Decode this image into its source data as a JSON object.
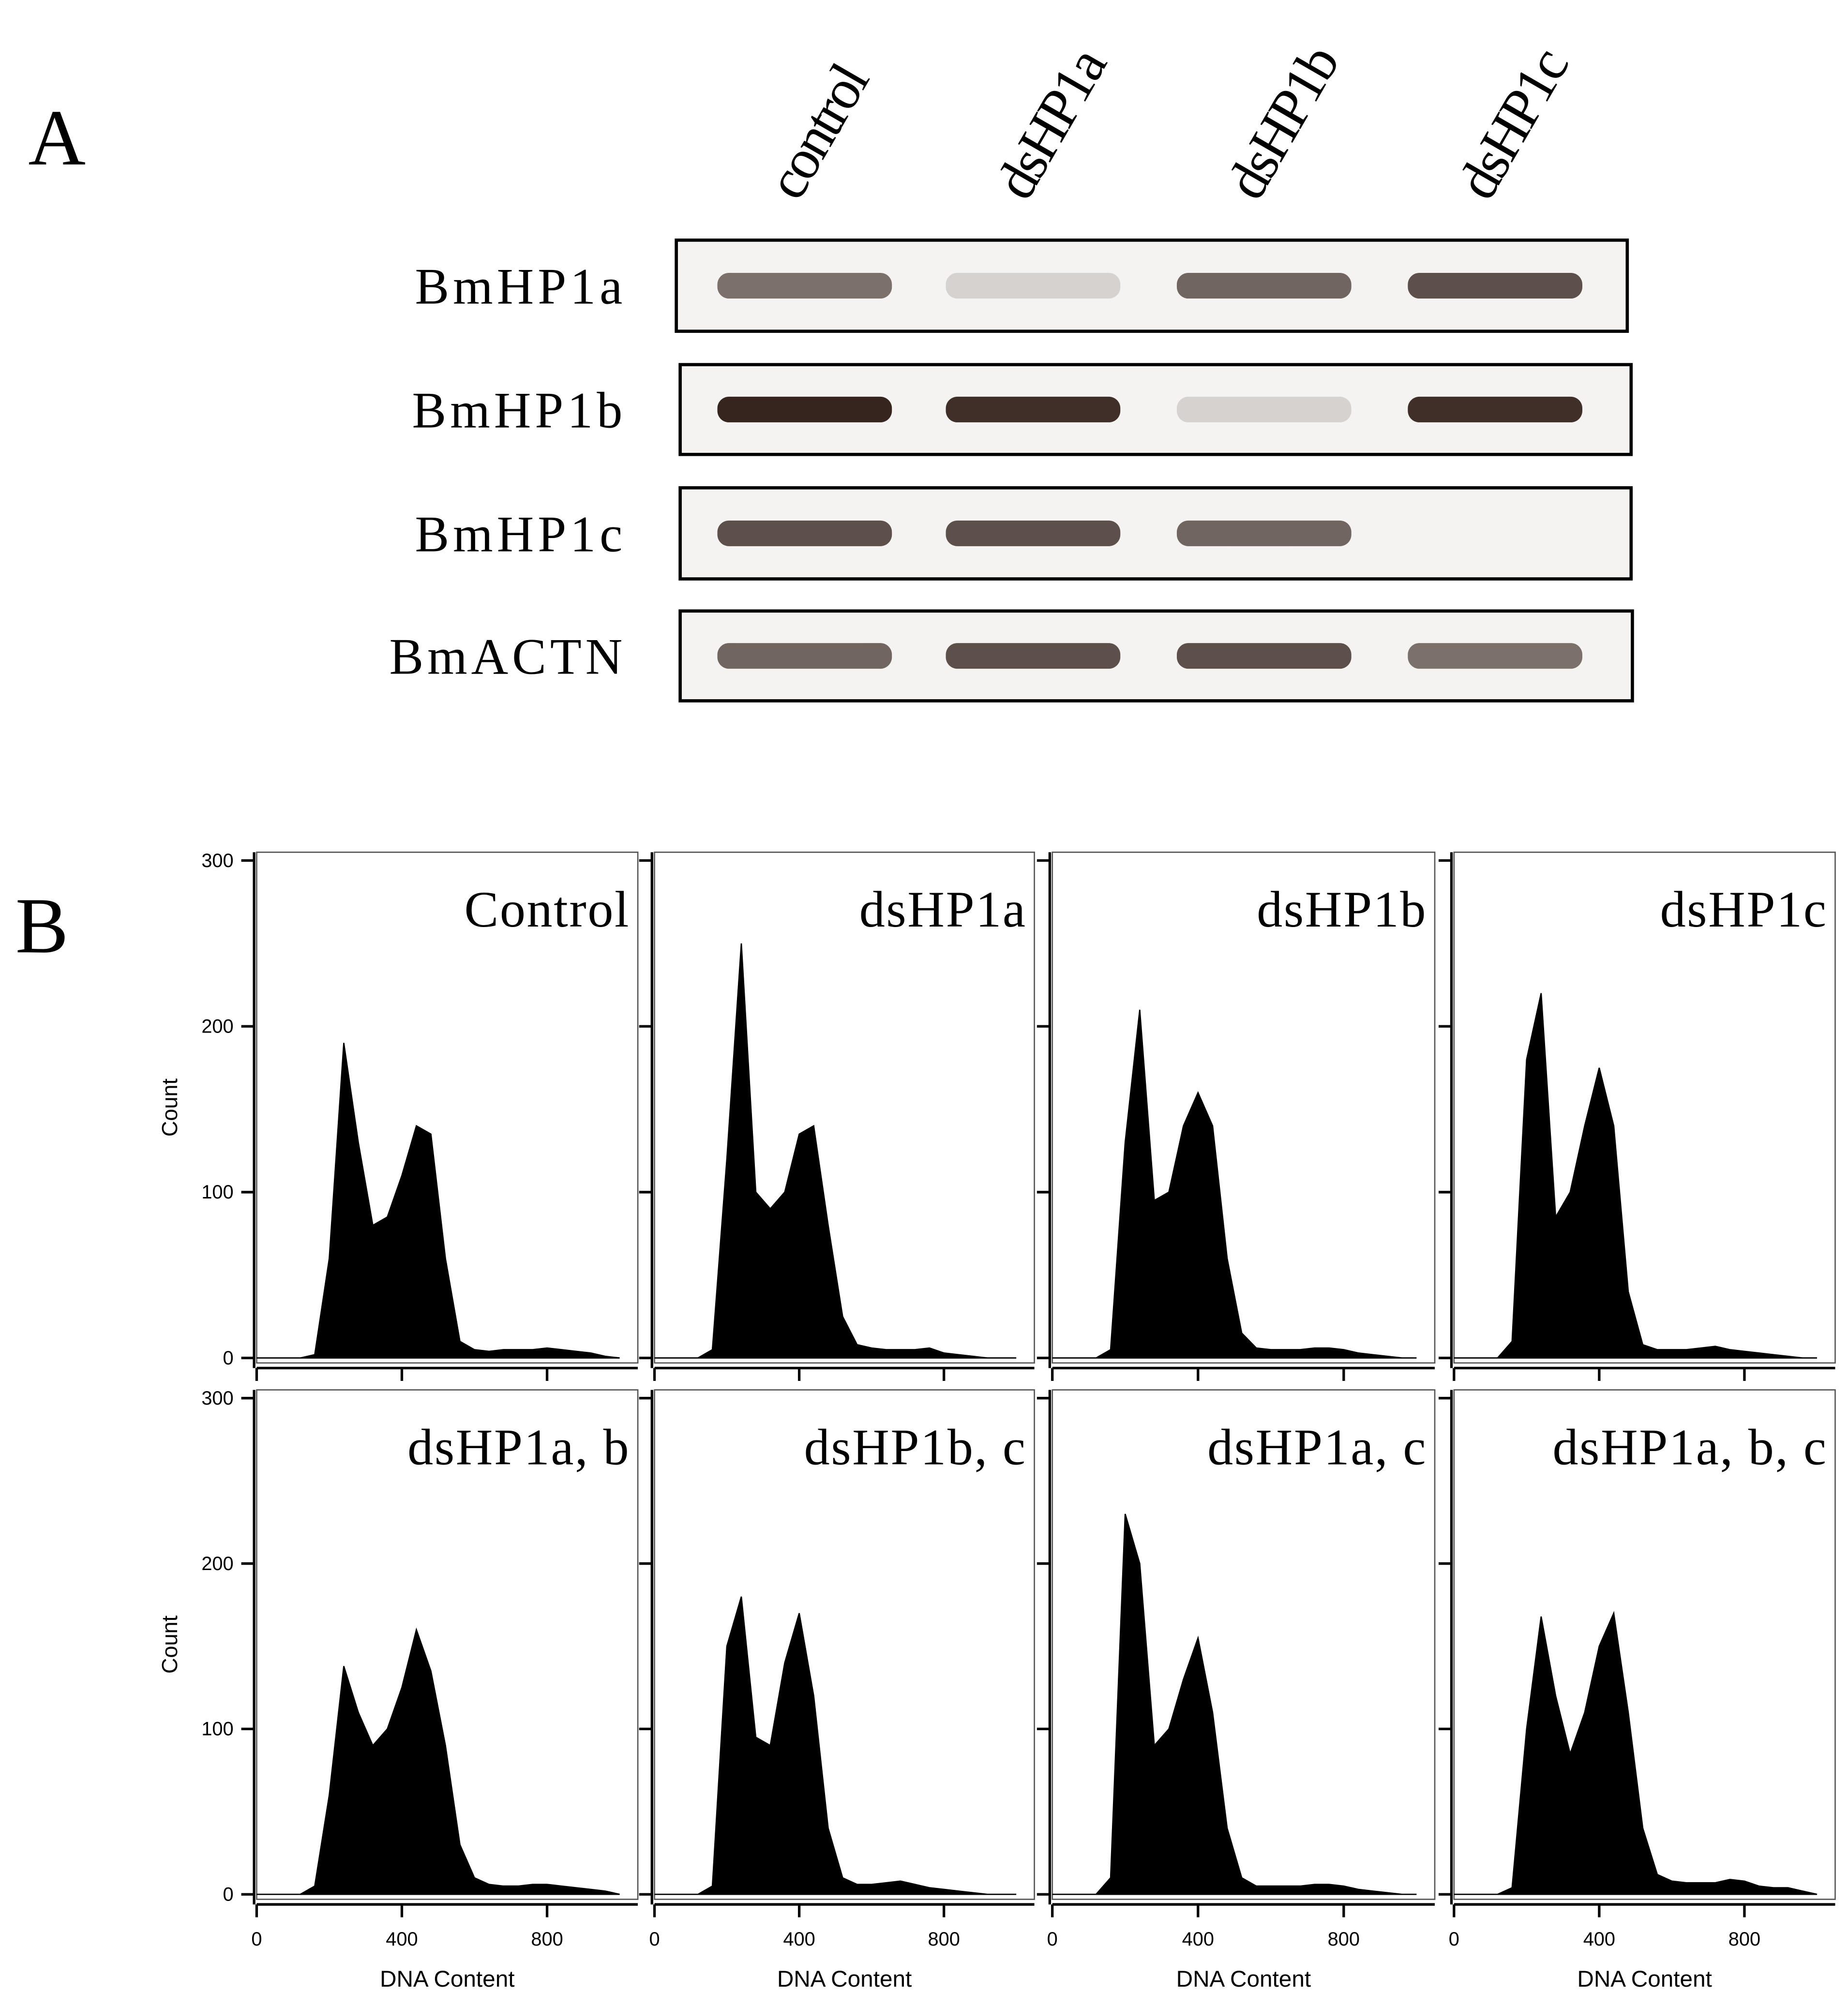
{
  "panel_a": {
    "label": "A",
    "lanes": [
      "control",
      "dsHP1a",
      "dsHP1b",
      "dsHP1c"
    ],
    "rows": [
      {
        "gene": "BmHP1a",
        "bands": [
          0.6,
          0.15,
          0.65,
          0.75
        ]
      },
      {
        "gene": "BmHP1b",
        "bands": [
          0.95,
          0.9,
          0.15,
          0.9
        ]
      },
      {
        "gene": "BmHP1c",
        "bands": [
          0.75,
          0.75,
          0.65,
          0
        ]
      },
      {
        "gene": "BmACTN",
        "bands": [
          0.65,
          0.75,
          0.75,
          0.6
        ]
      }
    ]
  },
  "panel_b": {
    "label": "B"
  },
  "chart_data": [
    {
      "type": "area",
      "title": "Control",
      "color": "#000000",
      "ylabel": "Count",
      "xtick_labels": false,
      "ytick_labels": true,
      "x": [
        0,
        40,
        80,
        120,
        160,
        200,
        240,
        280,
        320,
        360,
        400,
        440,
        480,
        520,
        560,
        600,
        640,
        680,
        720,
        760,
        800,
        840,
        880,
        920,
        960,
        1000
      ],
      "values": [
        0,
        0,
        0,
        0,
        2,
        60,
        190,
        130,
        80,
        85,
        110,
        140,
        135,
        60,
        10,
        5,
        4,
        5,
        5,
        5,
        6,
        5,
        4,
        3,
        1,
        0
      ],
      "xlim": [
        0,
        1050
      ],
      "ylim": [
        -3,
        305
      ],
      "xticks": [
        0,
        400,
        800
      ],
      "yticks": [
        0,
        100,
        200,
        300
      ]
    },
    {
      "type": "area",
      "title": "dsHP1a",
      "color": "#000000",
      "xtick_labels": false,
      "ytick_labels": false,
      "x": [
        0,
        40,
        80,
        120,
        160,
        200,
        240,
        280,
        320,
        360,
        400,
        440,
        480,
        520,
        560,
        600,
        640,
        680,
        720,
        760,
        800,
        840,
        880,
        920,
        960,
        1000
      ],
      "values": [
        0,
        0,
        0,
        0,
        5,
        120,
        250,
        100,
        90,
        100,
        135,
        140,
        80,
        25,
        8,
        6,
        5,
        5,
        5,
        6,
        3,
        2,
        1,
        0,
        0,
        0
      ],
      "xlim": [
        0,
        1050
      ],
      "ylim": [
        -3,
        305
      ],
      "xticks": [
        0,
        400,
        800
      ],
      "yticks": [
        0,
        100,
        200,
        300
      ]
    },
    {
      "type": "area",
      "title": "dsHP1b",
      "color": "#000000",
      "xtick_labels": false,
      "ytick_labels": false,
      "x": [
        0,
        40,
        80,
        120,
        160,
        200,
        240,
        280,
        320,
        360,
        400,
        440,
        480,
        520,
        560,
        600,
        640,
        680,
        720,
        760,
        800,
        840,
        880,
        920,
        960,
        1000
      ],
      "values": [
        0,
        0,
        0,
        0,
        5,
        130,
        210,
        95,
        100,
        140,
        160,
        140,
        60,
        15,
        6,
        5,
        5,
        5,
        6,
        6,
        5,
        3,
        2,
        1,
        0,
        0
      ],
      "xlim": [
        0,
        1050
      ],
      "ylim": [
        -3,
        305
      ],
      "xticks": [
        0,
        400,
        800
      ],
      "yticks": [
        0,
        100,
        200,
        300
      ]
    },
    {
      "type": "area",
      "title": "dsHP1c",
      "color": "#000000",
      "xtick_labels": false,
      "ytick_labels": false,
      "x": [
        0,
        40,
        80,
        120,
        160,
        200,
        240,
        280,
        320,
        360,
        400,
        440,
        480,
        520,
        560,
        600,
        640,
        680,
        720,
        760,
        800,
        840,
        880,
        920,
        960,
        1000
      ],
      "values": [
        0,
        0,
        0,
        0,
        10,
        180,
        220,
        85,
        100,
        140,
        175,
        140,
        40,
        8,
        5,
        5,
        5,
        6,
        7,
        5,
        4,
        3,
        2,
        1,
        0,
        0
      ],
      "xlim": [
        0,
        1050
      ],
      "ylim": [
        -3,
        305
      ],
      "xticks": [
        0,
        400,
        800
      ],
      "yticks": [
        0,
        100,
        200,
        300
      ]
    },
    {
      "type": "area",
      "title": "dsHP1a, b",
      "color": "#000000",
      "ylabel": "Count",
      "xlabel": "DNA Content",
      "xtick_labels": true,
      "ytick_labels": true,
      "x": [
        0,
        40,
        80,
        120,
        160,
        200,
        240,
        280,
        320,
        360,
        400,
        440,
        480,
        520,
        560,
        600,
        640,
        680,
        720,
        760,
        800,
        840,
        880,
        920,
        960,
        1000
      ],
      "values": [
        0,
        0,
        0,
        0,
        5,
        60,
        138,
        110,
        90,
        100,
        125,
        160,
        135,
        90,
        30,
        10,
        6,
        5,
        5,
        6,
        6,
        5,
        4,
        3,
        2,
        0
      ],
      "xlim": [
        0,
        1050
      ],
      "ylim": [
        -3,
        305
      ],
      "xticks": [
        0,
        400,
        800
      ],
      "yticks": [
        0,
        100,
        200,
        300
      ]
    },
    {
      "type": "area",
      "title": "dsHP1b, c",
      "color": "#000000",
      "xlabel": "DNA Content",
      "xtick_labels": true,
      "ytick_labels": false,
      "x": [
        0,
        40,
        80,
        120,
        160,
        200,
        240,
        280,
        320,
        360,
        400,
        440,
        480,
        520,
        560,
        600,
        640,
        680,
        720,
        760,
        800,
        840,
        880,
        920,
        960,
        1000
      ],
      "values": [
        0,
        0,
        0,
        0,
        5,
        150,
        180,
        95,
        90,
        140,
        170,
        120,
        40,
        10,
        6,
        6,
        7,
        8,
        6,
        4,
        3,
        2,
        1,
        0,
        0,
        0
      ],
      "xlim": [
        0,
        1050
      ],
      "ylim": [
        -3,
        305
      ],
      "xticks": [
        0,
        400,
        800
      ],
      "yticks": [
        0,
        100,
        200,
        300
      ]
    },
    {
      "type": "area",
      "title": "dsHP1a, c",
      "color": "#000000",
      "xlabel": "DNA Content",
      "xtick_labels": true,
      "ytick_labels": false,
      "x": [
        0,
        40,
        80,
        120,
        160,
        200,
        240,
        280,
        320,
        360,
        400,
        440,
        480,
        520,
        560,
        600,
        640,
        680,
        720,
        760,
        800,
        840,
        880,
        920,
        960,
        1000
      ],
      "values": [
        0,
        0,
        0,
        0,
        10,
        230,
        200,
        90,
        100,
        130,
        155,
        110,
        40,
        10,
        5,
        5,
        5,
        5,
        6,
        6,
        5,
        3,
        2,
        1,
        0,
        0
      ],
      "xlim": [
        0,
        1050
      ],
      "ylim": [
        -3,
        305
      ],
      "xticks": [
        0,
        400,
        800
      ],
      "yticks": [
        0,
        100,
        200,
        300
      ]
    },
    {
      "type": "area",
      "title": "dsHP1a, b, c",
      "color": "#000000",
      "xlabel": "DNA Content",
      "xtick_labels": true,
      "ytick_labels": false,
      "x": [
        0,
        40,
        80,
        120,
        160,
        200,
        240,
        280,
        320,
        360,
        400,
        440,
        480,
        520,
        560,
        600,
        640,
        680,
        720,
        760,
        800,
        840,
        880,
        920,
        960,
        1000
      ],
      "values": [
        0,
        0,
        0,
        0,
        4,
        100,
        168,
        120,
        85,
        110,
        150,
        170,
        110,
        40,
        12,
        8,
        7,
        7,
        7,
        9,
        8,
        5,
        4,
        4,
        2,
        0
      ],
      "xlim": [
        0,
        1050
      ],
      "ylim": [
        -3,
        305
      ],
      "xticks": [
        0,
        400,
        800
      ],
      "yticks": [
        0,
        100,
        200,
        300
      ]
    }
  ]
}
